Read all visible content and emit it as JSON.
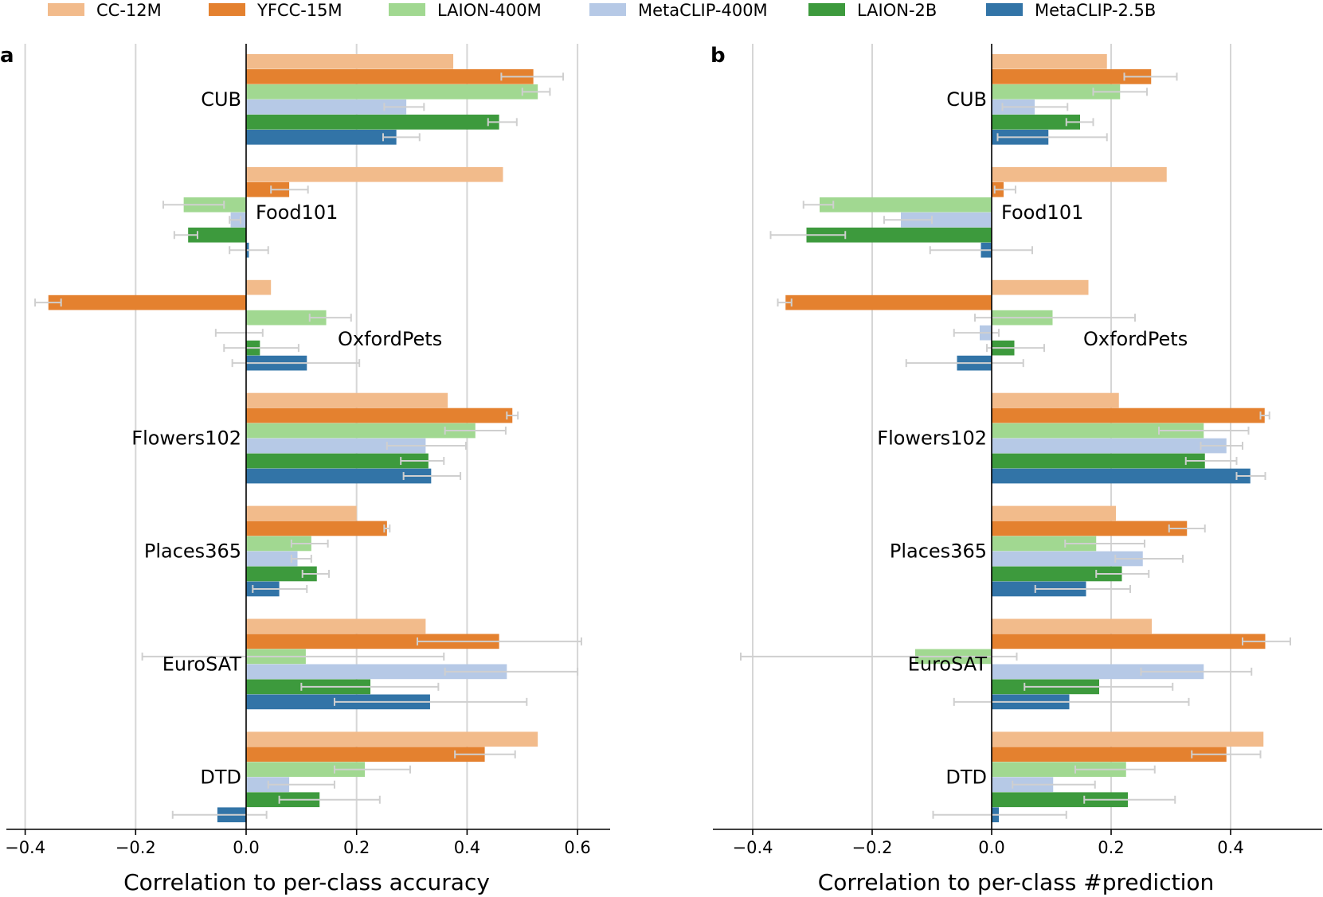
{
  "chart_data": {
    "type": "bar",
    "orientation": "horizontal",
    "legend": {
      "placement": "top",
      "entries": [
        {
          "name": "CC-12M",
          "color": "#f2bb8b"
        },
        {
          "name": "YFCC-15M",
          "color": "#e4812f"
        },
        {
          "name": "LAION-400M",
          "color": "#a1d891"
        },
        {
          "name": "MetaCLIP-400M",
          "color": "#b6c9e6"
        },
        {
          "name": "LAION-2B",
          "color": "#3d9a3d"
        },
        {
          "name": "MetaCLIP-2.5B",
          "color": "#3274a7"
        }
      ]
    },
    "errorbar_color": "#cfcfcf",
    "panels": [
      {
        "label": "a",
        "xlabel": "Correlation to per-class accuracy",
        "xlim": [
          -0.43,
          0.65
        ],
        "xticks": [
          -0.4,
          -0.2,
          0.0,
          0.2,
          0.4,
          0.6
        ],
        "xtick_labels": [
          "−0.4",
          "−0.2",
          "0.0",
          "0.2",
          "0.4",
          "0.6"
        ],
        "groups": [
          {
            "name": "CUB",
            "values": [
              0.375,
              0.52,
              0.528,
              0.29,
              0.458,
              0.272
            ],
            "errors": [
              null,
              [
                0.462,
                0.574
              ],
              [
                0.5,
                0.55
              ],
              [
                0.25,
                0.322
              ],
              [
                0.438,
                0.49
              ],
              [
                0.248,
                0.314
              ]
            ]
          },
          {
            "name": "Food101",
            "values": [
              0.465,
              0.078,
              -0.113,
              -0.028,
              -0.105,
              0.005
            ],
            "errors": [
              null,
              [
                0.045,
                0.112
              ],
              [
                -0.15,
                -0.04
              ],
              [
                -0.03,
                -0.01
              ],
              [
                -0.13,
                -0.088
              ],
              [
                -0.03,
                0.04
              ]
            ]
          },
          {
            "name": "OxfordPets",
            "values": [
              0.045,
              -0.358,
              0.145,
              0.0,
              0.025,
              0.11
            ],
            "errors": [
              null,
              [
                -0.382,
                -0.335
              ],
              [
                0.115,
                0.19
              ],
              [
                -0.055,
                0.03
              ],
              [
                -0.04,
                0.095
              ],
              [
                -0.025,
                0.205
              ]
            ]
          },
          {
            "name": "Flowers102",
            "values": [
              0.365,
              0.482,
              0.415,
              0.325,
              0.33,
              0.335
            ],
            "errors": [
              null,
              [
                0.472,
                0.492
              ],
              [
                0.36,
                0.47
              ],
              [
                0.255,
                0.398
              ],
              [
                0.28,
                0.358
              ],
              [
                0.285,
                0.388
              ]
            ]
          },
          {
            "name": "Places365",
            "values": [
              0.2,
              0.255,
              0.118,
              0.093,
              0.128,
              0.06
            ],
            "errors": [
              null,
              [
                0.25,
                0.26
              ],
              [
                0.082,
                0.148
              ],
              [
                0.082,
                0.118
              ],
              [
                0.102,
                0.15
              ],
              [
                0.012,
                0.11
              ]
            ]
          },
          {
            "name": "EuroSAT",
            "values": [
              0.325,
              0.458,
              0.108,
              0.472,
              0.225,
              0.333
            ],
            "errors": [
              null,
              [
                0.31,
                0.607
              ],
              [
                -0.188,
                0.358
              ],
              [
                0.36,
                0.6
              ],
              [
                0.1,
                0.348
              ],
              [
                0.16,
                0.508
              ]
            ]
          },
          {
            "name": "DTD",
            "values": [
              0.528,
              0.432,
              0.215,
              0.078,
              0.133,
              -0.052
            ],
            "errors": [
              null,
              [
                0.378,
                0.487
              ],
              [
                0.16,
                0.297
              ],
              [
                0.04,
                0.16
              ],
              [
                0.06,
                0.242
              ],
              [
                -0.133,
                0.037
              ]
            ]
          }
        ]
      },
      {
        "label": "b",
        "xlabel": "Correlation to per-class #prediction",
        "xlim": [
          -0.465,
          0.5
        ],
        "xticks": [
          -0.4,
          -0.2,
          0.0,
          0.2,
          0.4
        ],
        "xtick_labels": [
          "−0.4",
          "−0.2",
          "0.0",
          "0.2",
          "0.4"
        ],
        "groups": [
          {
            "name": "CUB",
            "values": [
              0.193,
              0.267,
              0.215,
              0.072,
              0.148,
              0.095
            ],
            "errors": [
              null,
              [
                0.222,
                0.31
              ],
              [
                0.17,
                0.26
              ],
              [
                0.018,
                0.127
              ],
              [
                0.125,
                0.17
              ],
              [
                0.01,
                0.193
              ]
            ]
          },
          {
            "name": "Food101",
            "values": [
              0.293,
              0.02,
              -0.288,
              -0.152,
              -0.31,
              -0.018
            ],
            "errors": [
              null,
              [
                0.005,
                0.04
              ],
              [
                -0.315,
                -0.265
              ],
              [
                -0.18,
                -0.1
              ],
              [
                -0.37,
                -0.245
              ],
              [
                -0.103,
                0.068
              ]
            ]
          },
          {
            "name": "OxfordPets",
            "values": [
              0.162,
              -0.345,
              0.102,
              -0.02,
              0.038,
              -0.058
            ],
            "errors": [
              null,
              [
                -0.358,
                -0.335
              ],
              [
                -0.028,
                0.24
              ],
              [
                -0.063,
                0.012
              ],
              [
                -0.008,
                0.088
              ],
              [
                -0.143,
                0.053
              ]
            ]
          },
          {
            "name": "Flowers102",
            "values": [
              0.213,
              0.457,
              0.355,
              0.393,
              0.357,
              0.433
            ],
            "errors": [
              null,
              [
                0.45,
                0.465
              ],
              [
                0.28,
                0.43
              ],
              [
                0.35,
                0.42
              ],
              [
                0.325,
                0.41
              ],
              [
                0.41,
                0.458
              ]
            ]
          },
          {
            "name": "Places365",
            "values": [
              0.208,
              0.327,
              0.175,
              0.253,
              0.218,
              0.158
            ],
            "errors": [
              null,
              [
                0.297,
                0.357
              ],
              [
                0.123,
                0.256
              ],
              [
                0.207,
                0.32
              ],
              [
                0.175,
                0.263
              ],
              [
                0.073,
                0.232
              ]
            ]
          },
          {
            "name": "EuroSAT",
            "values": [
              0.268,
              0.458,
              -0.128,
              0.355,
              0.18,
              0.13
            ],
            "errors": [
              null,
              [
                0.42,
                0.5
              ],
              [
                -0.42,
                0.042
              ],
              [
                0.25,
                0.435
              ],
              [
                0.055,
                0.303
              ],
              [
                -0.063,
                0.33
              ]
            ]
          },
          {
            "name": "DTD",
            "values": [
              0.455,
              0.393,
              0.225,
              0.103,
              0.228,
              0.012
            ],
            "errors": [
              null,
              [
                0.335,
                0.45
              ],
              [
                0.14,
                0.273
              ],
              [
                0.035,
                0.173
              ],
              [
                0.155,
                0.307
              ],
              [
                -0.098,
                0.125
              ]
            ]
          }
        ]
      }
    ]
  }
}
